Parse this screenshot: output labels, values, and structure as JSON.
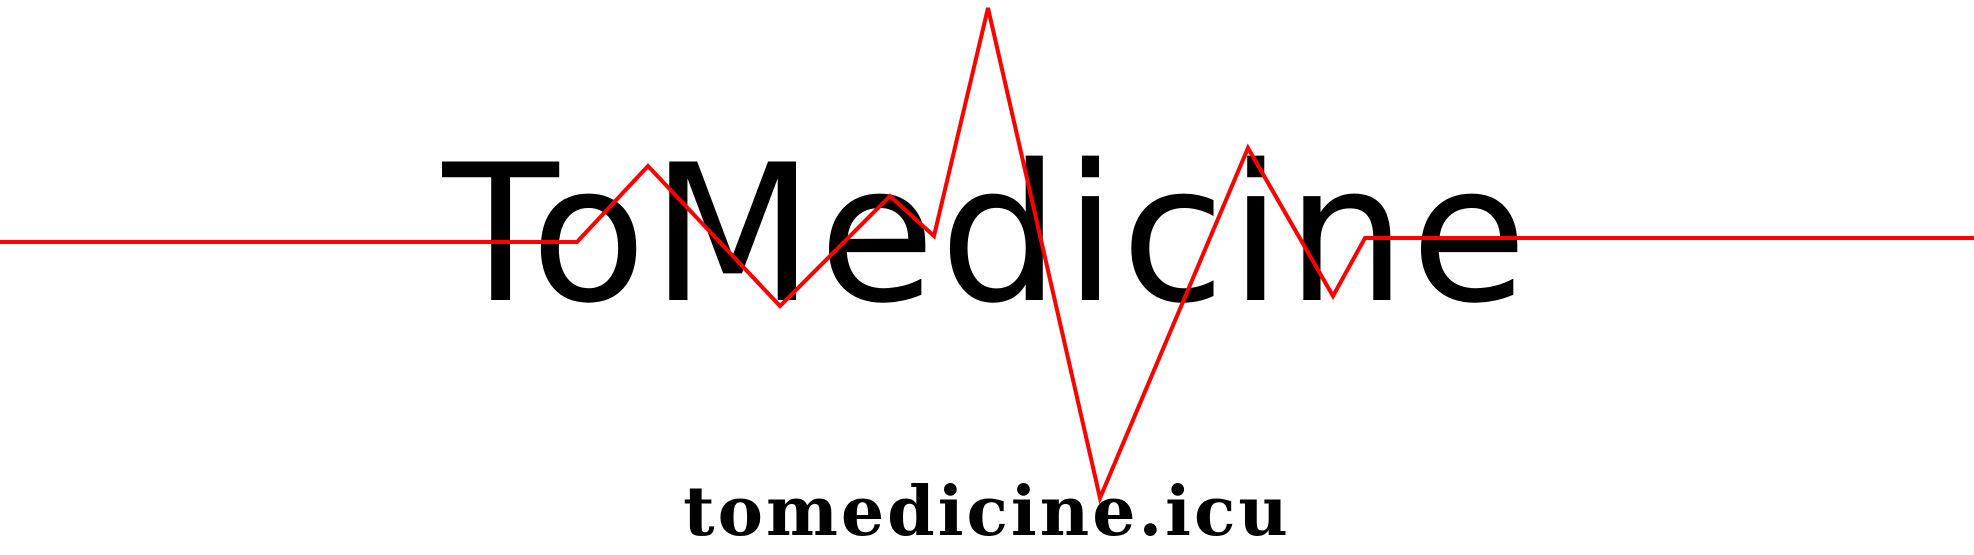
{
  "logo": {
    "title": "ToMedicine",
    "url": "tomedicine.icu",
    "ecg_line_color": "#ff0000",
    "text_color": "#000000",
    "background_color": "#ffffff"
  }
}
